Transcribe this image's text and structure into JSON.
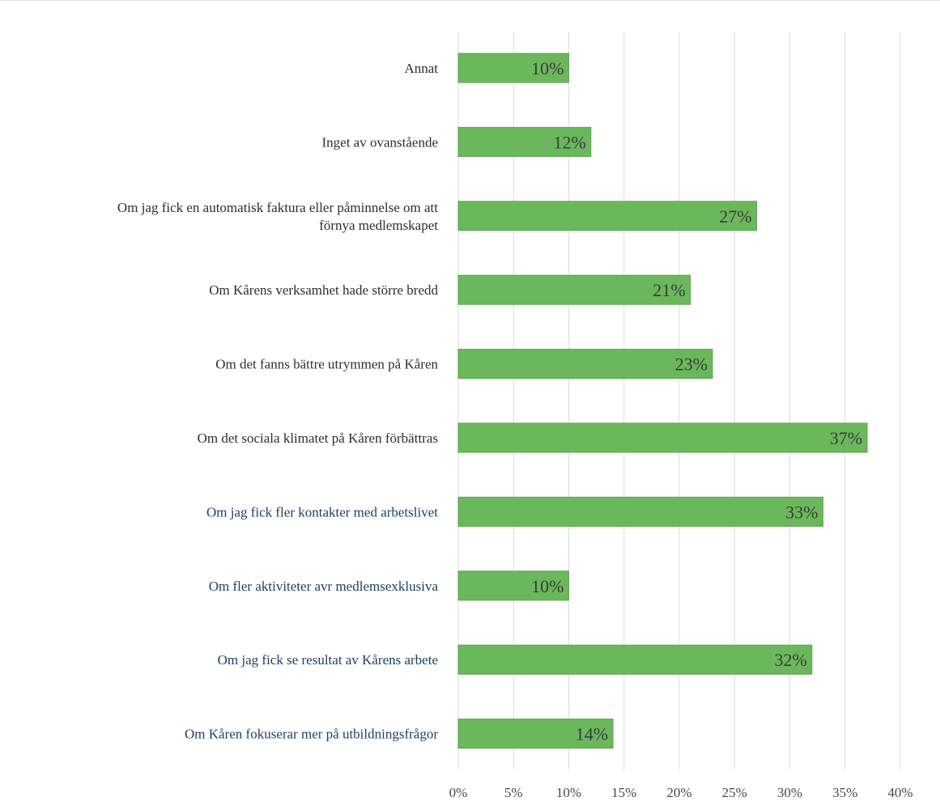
{
  "chart_data": {
    "type": "bar",
    "orientation": "horizontal",
    "title": "",
    "xlabel": "",
    "ylabel": "",
    "categories": [
      "Annat",
      "Inget av ovanstående",
      "Om jag fick en automatisk faktura eller påminnelse om att förnya medlemskapet",
      "Om Kårens verksamhet hade större bredd",
      "Om det fanns bättre utrymmen på Kåren",
      "Om det sociala klimatet på Kåren förbättras",
      "Om jag fick fler kontakter med arbetslivet",
      "Om fler aktiviteter avr medlemsexklusiva",
      "Om jag fick se resultat av Kårens arbete",
      "Om Kåren fokuserar mer på utbildningsfrågor"
    ],
    "category_lines": [
      [
        "Annat"
      ],
      [
        "Inget av ovanstående"
      ],
      [
        "Om jag fick en automatisk faktura eller påminnelse om att",
        "förnya medlemskapet"
      ],
      [
        "Om Kårens verksamhet hade större bredd"
      ],
      [
        "Om det fanns bättre utrymmen på Kåren"
      ],
      [
        "Om det sociala klimatet på Kåren förbättras"
      ],
      [
        "Om jag fick fler kontakter med arbetslivet"
      ],
      [
        "Om fler aktiviteter avr medlemsexklusiva"
      ],
      [
        "Om jag fick se resultat av Kårens arbete"
      ],
      [
        "Om Kåren fokuserar mer på utbildningsfrågor"
      ]
    ],
    "values": [
      10,
      12,
      27,
      21,
      23,
      37,
      33,
      10,
      32,
      14
    ],
    "data_labels": [
      "10%",
      "12%",
      "27%",
      "21%",
      "23%",
      "37%",
      "33%",
      "10%",
      "32%",
      "14%"
    ],
    "x_ticks": [
      0,
      5,
      10,
      15,
      20,
      25,
      30,
      35,
      40
    ],
    "x_tick_labels": [
      "0%",
      "5%",
      "10%",
      "15%",
      "20%",
      "25%",
      "30%",
      "35%",
      "40%"
    ],
    "xlim": [
      0,
      40
    ],
    "grid": true,
    "legend": "none"
  },
  "colors": {
    "bar": "#6bb85c",
    "bar_edge": "#5aa64c",
    "grid": "#dcdcdc",
    "label_dark": "#2e2e2e",
    "label_blue": "#1f3f66"
  }
}
